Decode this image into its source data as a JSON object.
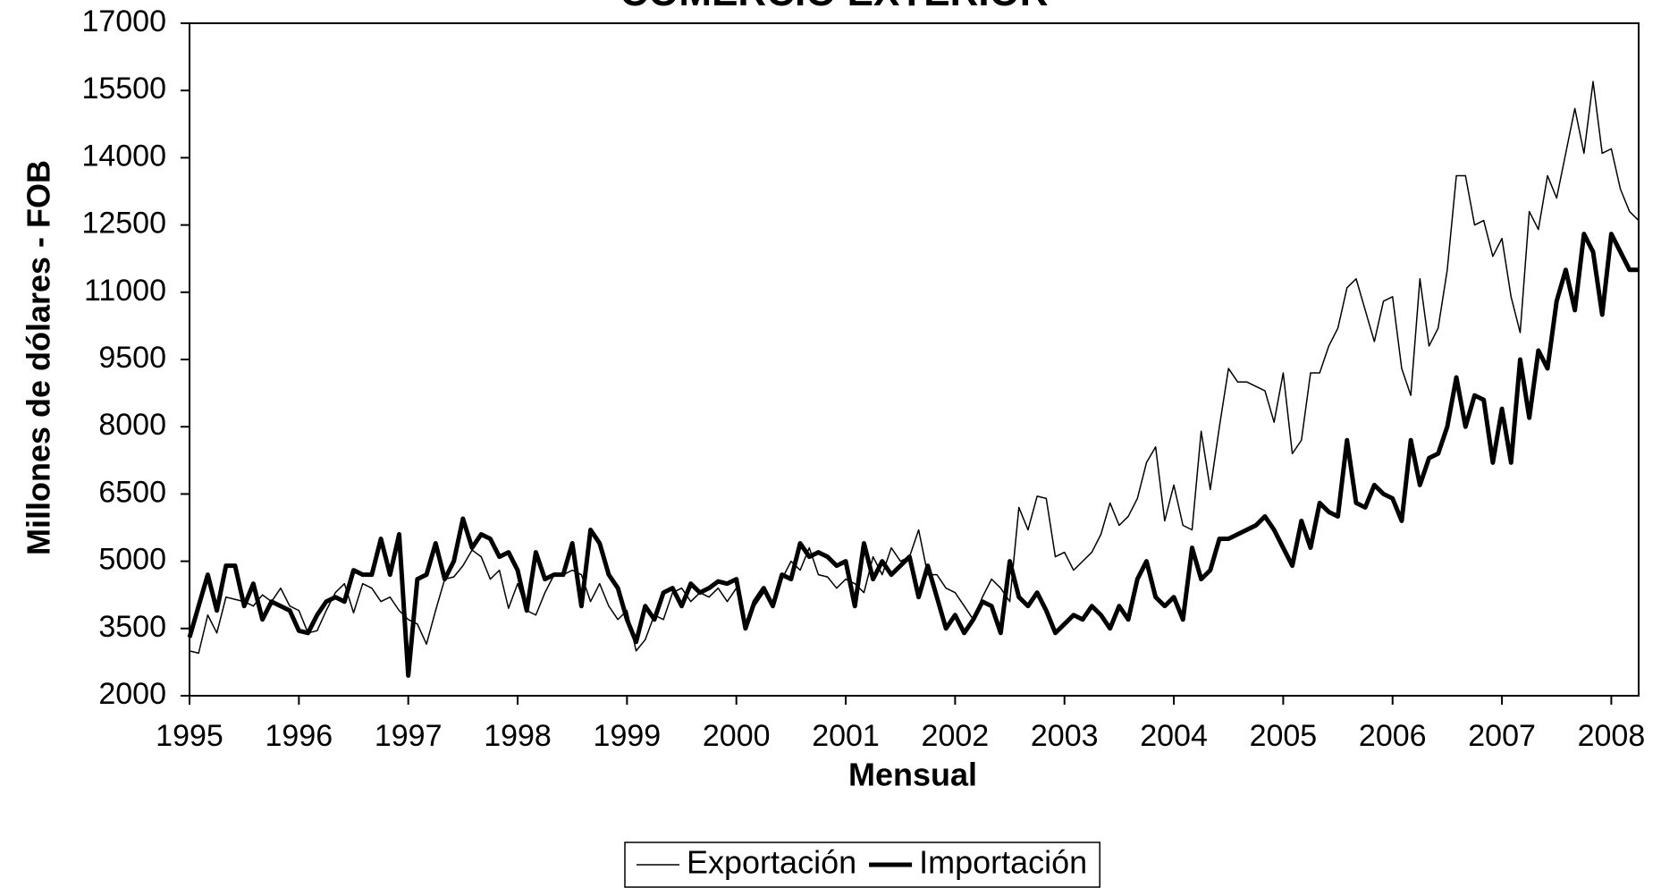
{
  "chart_data": {
    "type": "line",
    "title": "COMERCIO EXTERIOR",
    "x_label": "Mensual",
    "y_label": "Millones de dólares - FOB",
    "categories": [
      "1995",
      null,
      null,
      null,
      null,
      null,
      null,
      null,
      null,
      null,
      null,
      null,
      "1996",
      null,
      null,
      null,
      null,
      null,
      null,
      null,
      null,
      null,
      null,
      null,
      "1997",
      null,
      null,
      null,
      null,
      null,
      null,
      null,
      null,
      null,
      null,
      null,
      "1998",
      null,
      null,
      null,
      null,
      null,
      null,
      null,
      null,
      null,
      null,
      null,
      "1999",
      null,
      null,
      null,
      null,
      null,
      null,
      null,
      null,
      null,
      null,
      null,
      "2000",
      null,
      null,
      null,
      null,
      null,
      null,
      null,
      null,
      null,
      null,
      null,
      "2001",
      null,
      null,
      null,
      null,
      null,
      null,
      null,
      null,
      null,
      null,
      null,
      "2002",
      null,
      null,
      null,
      null,
      null,
      null,
      null,
      null,
      null,
      null,
      null,
      "2003",
      null,
      null,
      null,
      null,
      null,
      null,
      null,
      null,
      null,
      null,
      null,
      "2004",
      null,
      null,
      null,
      null,
      null,
      null,
      null,
      null,
      null,
      null,
      null,
      "2005",
      null,
      null,
      null,
      null,
      null,
      null,
      null,
      null,
      null,
      null,
      null,
      "2006",
      null,
      null,
      null,
      null,
      null,
      null,
      null,
      null,
      null,
      null,
      null,
      "2007",
      null,
      null,
      null,
      null,
      null,
      null,
      null,
      null,
      null,
      null,
      null,
      "2008",
      null,
      null,
      null
    ],
    "series": [
      {
        "name": "Exportación",
        "color": "#000000",
        "line_width": 1.5,
        "values": [
          3000,
          2950,
          3800,
          3400,
          4200,
          4150,
          4100,
          4000,
          4250,
          4100,
          4400,
          4000,
          3900,
          3400,
          3450,
          3900,
          4300,
          4500,
          3850,
          4500,
          4400,
          4100,
          4200,
          3900,
          3700,
          3600,
          3150,
          3900,
          4600,
          4650,
          4900,
          5250,
          5100,
          4600,
          4800,
          3950,
          4500,
          3900,
          3800,
          4300,
          4700,
          4700,
          4800,
          4700,
          4100,
          4500,
          4000,
          3700,
          3900,
          3000,
          3250,
          3800,
          3700,
          4300,
          4400,
          4100,
          4300,
          4200,
          4400,
          4100,
          4400,
          3600,
          4000,
          4300,
          4100,
          4600,
          5000,
          4800,
          5300,
          4700,
          4650,
          4400,
          4600,
          4500,
          4300,
          5100,
          4700,
          5300,
          5000,
          5100,
          5700,
          4700,
          4700,
          4400,
          4300,
          4000,
          3700,
          4200,
          4600,
          4400,
          4100,
          6200,
          5700,
          6450,
          6400,
          5100,
          5200,
          4800,
          5000,
          5200,
          5600,
          6300,
          5800,
          6000,
          6400,
          7200,
          7550,
          5900,
          6700,
          5800,
          5700,
          7900,
          6600,
          8000,
          9300,
          9000,
          9000,
          8900,
          8800,
          8100,
          9200,
          7400,
          7700,
          9200,
          9200,
          9800,
          10200,
          11100,
          11300,
          10600,
          9900,
          10800,
          10900,
          9300,
          8700,
          11300,
          9800,
          10200,
          11500,
          13600,
          13600,
          12500,
          12600,
          11800,
          12200,
          10900,
          10100,
          12800,
          12400,
          13600,
          13100,
          14100,
          15100,
          14100,
          15700,
          14100,
          14200,
          13300,
          12800,
          12600
        ]
      },
      {
        "name": "Importación",
        "color": "#000000",
        "line_width": 5,
        "values": [
          3300,
          4000,
          4700,
          3900,
          4900,
          4900,
          4000,
          4500,
          3700,
          4100,
          4000,
          3900,
          3450,
          3400,
          3800,
          4100,
          4200,
          4100,
          4800,
          4700,
          4700,
          5500,
          4700,
          5600,
          2450,
          4600,
          4700,
          5400,
          4600,
          5000,
          5950,
          5300,
          5600,
          5500,
          5100,
          5200,
          4800,
          3900,
          5200,
          4600,
          4700,
          4700,
          5400,
          4000,
          5700,
          5400,
          4700,
          4400,
          3700,
          3200,
          4000,
          3700,
          4300,
          4400,
          4000,
          4500,
          4300,
          4400,
          4550,
          4500,
          4600,
          3500,
          4100,
          4400,
          4000,
          4700,
          4600,
          5400,
          5100,
          5200,
          5100,
          4900,
          5000,
          4000,
          5400,
          4600,
          5000,
          4700,
          4900,
          5100,
          4200,
          4900,
          4200,
          3500,
          3800,
          3400,
          3700,
          4100,
          4000,
          3400,
          5000,
          4200,
          4000,
          4300,
          3900,
          3400,
          3600,
          3800,
          3700,
          4000,
          3800,
          3500,
          4000,
          3700,
          4600,
          5000,
          4200,
          4000,
          4200,
          3700,
          5300,
          4600,
          4800,
          5500,
          5500,
          5600,
          5700,
          5800,
          6000,
          5700,
          5300,
          4900,
          5900,
          5300,
          6300,
          6100,
          6000,
          7700,
          6300,
          6200,
          6700,
          6500,
          6400,
          5900,
          7700,
          6700,
          7300,
          7400,
          8000,
          9100,
          8000,
          8700,
          8600,
          7200,
          8400,
          7200,
          9500,
          8200,
          9700,
          9300,
          10800,
          11500,
          10600,
          12300,
          11900,
          10500,
          12300,
          11900,
          11500,
          11500
        ]
      }
    ],
    "ylim": [
      2000,
      17000
    ],
    "yticks": [
      2000,
      3500,
      5000,
      6500,
      8000,
      9500,
      11000,
      12500,
      14000,
      15500,
      17000
    ],
    "grid": false,
    "legend": "bottom"
  }
}
